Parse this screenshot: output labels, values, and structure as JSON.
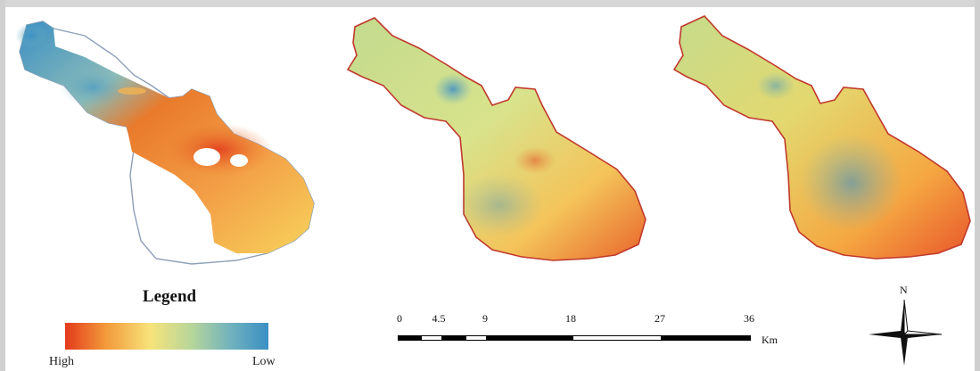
{
  "legend": {
    "title": "Legend",
    "high_label": "High",
    "low_label": "Low",
    "colors": [
      "#e33a1c",
      "#f39a3a",
      "#f7e37a",
      "#b7d69a",
      "#6fb1be",
      "#3b8fc4"
    ]
  },
  "scale_bar": {
    "ticks": [
      "0",
      "4.5",
      "9",
      "18",
      "27",
      "36"
    ],
    "unit": "Km"
  },
  "compass": {
    "north_label": "N"
  }
}
